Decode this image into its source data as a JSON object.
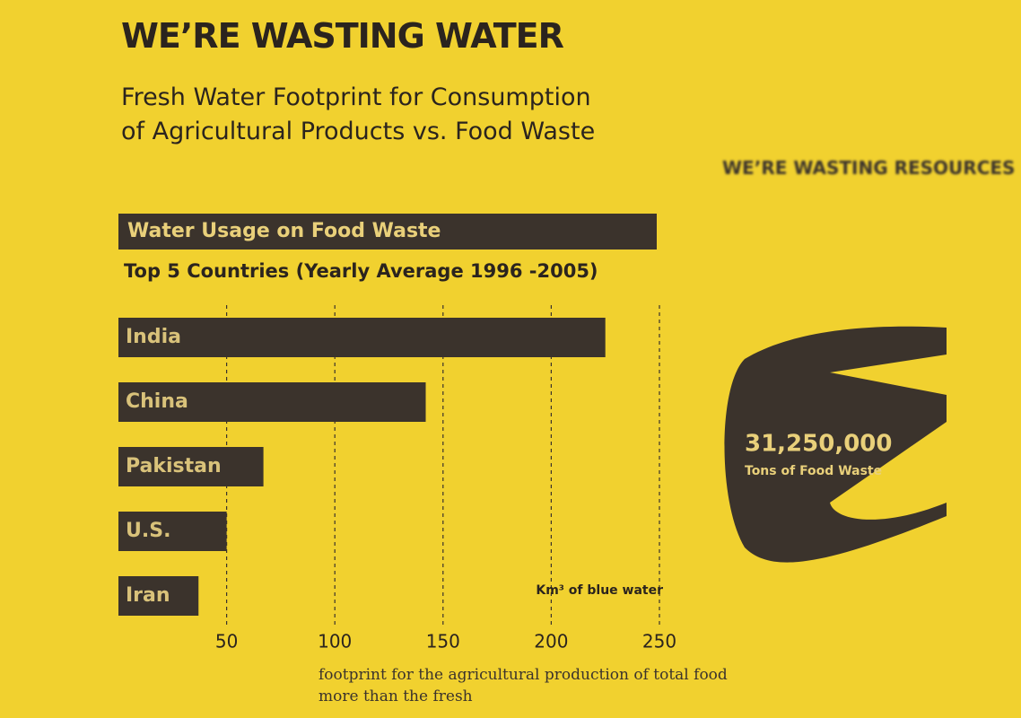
{
  "header": {
    "title": "WE’RE WASTING WATER",
    "subtitle": "Fresh Water Footprint for Consumption of Agricultural Products vs. Food Waste"
  },
  "chart_data": {
    "type": "bar",
    "orientation": "horizontal",
    "title": "Water Usage on Food Waste",
    "subtitle": "Top 5 Countries (Yearly Average 1996 -2005)",
    "categories": [
      "India",
      "China",
      "Pakistan",
      "U.S.",
      "Iran"
    ],
    "values": [
      225,
      142,
      67,
      50,
      37
    ],
    "color": "#3b332c",
    "xlim": [
      0,
      250
    ],
    "xticks": [
      50,
      100,
      150,
      200,
      250
    ],
    "x_label": "Km³ of blue water",
    "grid": true
  },
  "side_panel": {
    "title": "WE’RE WASTING RESOURCES",
    "figure": "31,250,000",
    "figure_label": "Tons of Food Waste"
  },
  "caption": [
    "footprint for the agricultural production of total food",
    "more than the fresh"
  ]
}
